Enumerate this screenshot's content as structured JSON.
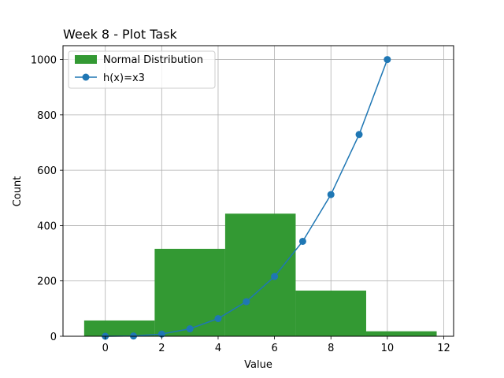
{
  "chart_data": {
    "type": "bar",
    "title": "Week 8 - Plot Task",
    "xlabel": "Value",
    "ylabel": "Count",
    "xlim": [
      -1.5,
      12.35
    ],
    "ylim": [
      0,
      1050
    ],
    "xticks": [
      0,
      2,
      4,
      6,
      8,
      10,
      12
    ],
    "yticks": [
      0,
      200,
      400,
      600,
      800,
      1000
    ],
    "grid": true,
    "legend_position": "upper left",
    "histogram": {
      "name": "Normal Distribution",
      "color": "#339933",
      "bins": [
        {
          "x0": -0.75,
          "x1": 1.75,
          "count": 57
        },
        {
          "x0": 1.75,
          "x1": 4.25,
          "count": 316
        },
        {
          "x0": 4.25,
          "x1": 6.75,
          "count": 443
        },
        {
          "x0": 6.75,
          "x1": 9.25,
          "count": 165
        },
        {
          "x0": 9.25,
          "x1": 11.75,
          "count": 18
        }
      ]
    },
    "line": {
      "name": "h(x)=x3",
      "color": "#1f77b4",
      "marker": "circle",
      "x": [
        0,
        1,
        2,
        3,
        4,
        5,
        6,
        7,
        8,
        9,
        10
      ],
      "y": [
        0,
        1,
        8,
        27,
        64,
        125,
        216,
        343,
        512,
        729,
        1000
      ]
    }
  }
}
